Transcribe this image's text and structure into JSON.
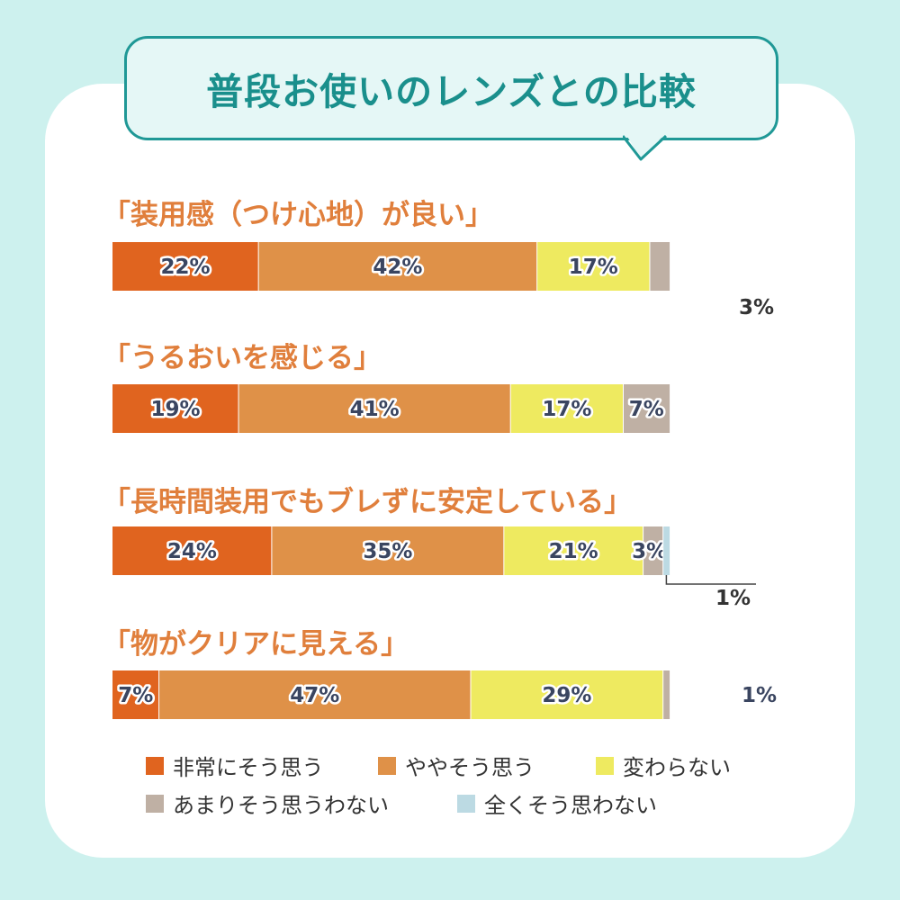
{
  "title": "普段お使いのレンズとの比較",
  "colors": {
    "very_much_agree": "#e0641f",
    "somewhat_agree": "#df9148",
    "no_change": "#eeea60",
    "not_really_agree": "#bfb0a4",
    "not_at_all_agree": "#bcdae3",
    "accent": "#1f9896",
    "question_label": "#e07f3c"
  },
  "chart_data": {
    "type": "bar",
    "orientation": "horizontal",
    "stacked": true,
    "title": "普段お使いのレンズとの比較",
    "xlim": [
      0,
      100
    ],
    "grid": false,
    "legend_placement": "bottom",
    "categories": [
      "「装用感（つけ心地）が良い」",
      "「うるおいを感じる」",
      "「長時間装用でもブレずに安定している」",
      "「物がクリアに見える」"
    ],
    "series": [
      {
        "name": "非常にそう思う",
        "values": [
          22,
          19,
          24,
          7
        ],
        "labels": [
          "22%",
          "19%",
          "24%",
          "7%"
        ]
      },
      {
        "name": "ややそう思う",
        "values": [
          42,
          41,
          35,
          47
        ],
        "labels": [
          "42%",
          "41%",
          "35%",
          "47%"
        ]
      },
      {
        "name": "変わらない",
        "values": [
          17,
          17,
          21,
          29
        ],
        "labels": [
          "17%",
          "17%",
          "21%",
          "29%"
        ]
      },
      {
        "name": "あまりそう思うわない",
        "values": [
          3,
          7,
          3,
          1
        ],
        "labels": [
          "3%",
          "7%",
          "3%",
          "1%"
        ]
      },
      {
        "name": "全くそう思わない",
        "values": [
          0,
          0,
          1,
          0
        ],
        "labels": [
          "",
          "",
          "1%",
          ""
        ]
      }
    ]
  }
}
